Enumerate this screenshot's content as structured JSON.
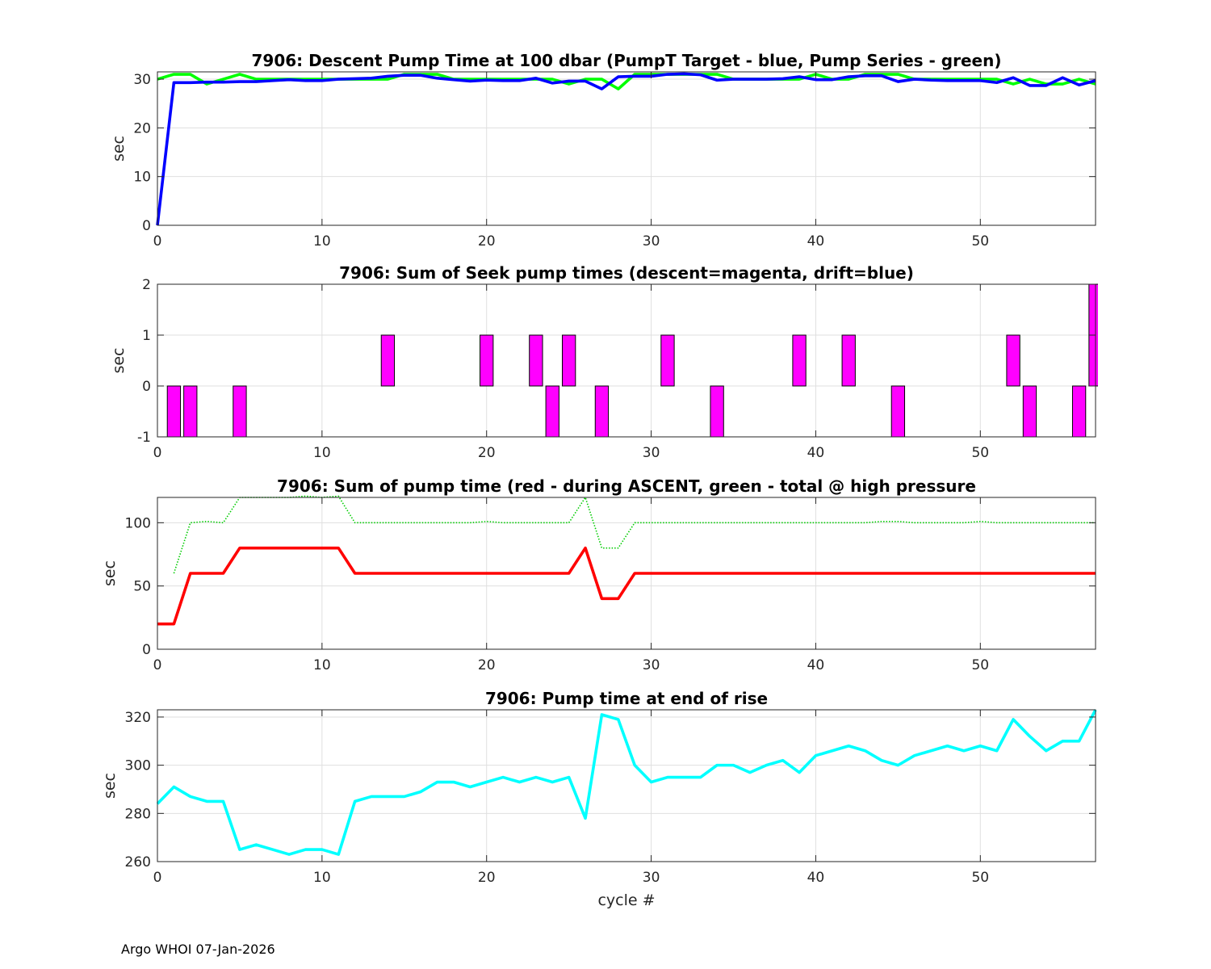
{
  "footer": "Argo WHOI 07-Jan-2026",
  "chart_data": [
    {
      "type": "line",
      "title": "7906: Descent Pump Time at 100 dbar (PumpT Target - blue, Pump Series - green)",
      "xlabel": "",
      "ylabel": "sec",
      "xlim": [
        0,
        57
      ],
      "ylim": [
        0,
        31.5
      ],
      "xticks": [
        0,
        10,
        20,
        30,
        40,
        50
      ],
      "yticks": [
        0,
        10,
        20,
        30
      ],
      "grid": true,
      "series": [
        {
          "name": "Pump Series",
          "color": "#00ff00",
          "style": "solid",
          "x": [
            0,
            1,
            2,
            3,
            4,
            5,
            6,
            7,
            8,
            9,
            10,
            11,
            12,
            13,
            14,
            15,
            16,
            17,
            18,
            19,
            20,
            21,
            22,
            23,
            24,
            25,
            26,
            27,
            28,
            29,
            30,
            31,
            32,
            33,
            34,
            35,
            36,
            37,
            38,
            39,
            40,
            41,
            42,
            43,
            44,
            45,
            46,
            47,
            48,
            49,
            50,
            51,
            52,
            53,
            54,
            55,
            56,
            57
          ],
          "values": [
            30,
            31,
            31,
            29,
            30,
            31,
            30,
            30,
            30,
            30,
            30,
            30,
            30,
            30,
            30,
            31,
            31,
            31,
            30,
            30,
            30,
            30,
            30,
            30,
            30,
            29,
            30,
            30,
            28,
            31,
            31,
            31,
            31,
            31,
            31,
            30,
            30,
            30,
            30,
            30,
            31,
            30,
            30,
            31,
            31,
            31,
            30,
            30,
            30,
            30,
            30,
            30,
            29,
            30,
            29,
            29,
            30,
            29
          ]
        },
        {
          "name": "PumpT Target",
          "color": "#0000ff",
          "style": "solid",
          "x": [
            0,
            1,
            2,
            3,
            4,
            5,
            6,
            7,
            8,
            9,
            10,
            11,
            12,
            13,
            14,
            15,
            16,
            17,
            18,
            19,
            20,
            21,
            22,
            23,
            24,
            25,
            26,
            27,
            28,
            29,
            30,
            31,
            32,
            33,
            34,
            35,
            36,
            37,
            38,
            39,
            40,
            41,
            42,
            43,
            44,
            45,
            46,
            47,
            48,
            49,
            50,
            51,
            52,
            53,
            54,
            55,
            56,
            57
          ],
          "values": [
            0,
            29.3,
            29.3,
            29.4,
            29.4,
            29.5,
            29.5,
            29.7,
            29.9,
            29.7,
            29.7,
            30,
            30.1,
            30.2,
            30.6,
            30.8,
            30.8,
            30.2,
            29.9,
            29.6,
            29.8,
            29.7,
            29.7,
            30.2,
            29.2,
            29.6,
            29.6,
            28,
            30.5,
            30.6,
            30.6,
            31,
            31.1,
            30.9,
            29.8,
            30,
            30,
            30,
            30.1,
            30.5,
            29.9,
            29.9,
            30.5,
            30.7,
            30.7,
            29.5,
            30,
            29.8,
            29.7,
            29.7,
            29.7,
            29.3,
            30.3,
            28.7,
            28.7,
            30.3,
            28.8,
            29.7
          ]
        }
      ]
    },
    {
      "type": "bar",
      "title": "7906: Sum of Seek pump times (descent=magenta, drift=blue)",
      "xlabel": "",
      "ylabel": "sec",
      "xlim": [
        0,
        57
      ],
      "ylim": [
        -1,
        2
      ],
      "xticks": [
        0,
        10,
        20,
        30,
        40,
        50
      ],
      "yticks": [
        -1,
        0,
        1,
        2
      ],
      "grid": true,
      "series": [
        {
          "name": "descent",
          "color": "#ff00ff",
          "x": [
            1,
            2,
            5,
            14,
            20,
            23,
            24,
            25,
            27,
            31,
            34,
            39,
            42,
            45,
            52,
            53,
            56,
            57
          ],
          "values": [
            -1,
            -1,
            -1,
            1,
            1,
            1,
            -1,
            1,
            -1,
            1,
            -1,
            1,
            1,
            -1,
            1,
            -1,
            -1,
            2
          ]
        }
      ]
    },
    {
      "type": "line",
      "title": "7906: Sum of pump time (red - during ASCENT, green - total @ high pressure",
      "xlabel": "",
      "ylabel": "sec",
      "xlim": [
        0,
        57
      ],
      "ylim": [
        0,
        120
      ],
      "xticks": [
        0,
        10,
        20,
        30,
        40,
        50
      ],
      "yticks": [
        0,
        50,
        100
      ],
      "grid": true,
      "series": [
        {
          "name": "total @ high pressure",
          "color": "#00cc00",
          "style": "dotted",
          "x": [
            1,
            2,
            3,
            4,
            5,
            6,
            7,
            8,
            9,
            10,
            11,
            12,
            13,
            14,
            15,
            16,
            17,
            18,
            19,
            20,
            21,
            22,
            23,
            24,
            25,
            26,
            27,
            28,
            29,
            30,
            31,
            32,
            33,
            34,
            35,
            36,
            37,
            38,
            39,
            40,
            41,
            42,
            43,
            44,
            45,
            46,
            47,
            48,
            49,
            50,
            51,
            52,
            53,
            54,
            55,
            56,
            57
          ],
          "values": [
            60,
            100,
            101,
            100,
            120,
            120,
            120,
            120,
            121,
            120,
            121,
            100,
            100,
            100,
            100,
            100,
            100,
            100,
            100,
            101,
            100,
            100,
            100,
            100,
            100,
            120,
            80,
            80,
            100,
            100,
            100,
            100,
            100,
            100,
            100,
            100,
            100,
            100,
            100,
            100,
            100,
            100,
            100,
            101,
            101,
            100,
            100,
            100,
            100,
            101,
            100,
            100,
            100,
            100,
            100,
            100,
            100
          ]
        },
        {
          "name": "during ASCENT",
          "color": "#ff0000",
          "style": "solid",
          "x": [
            0,
            1,
            2,
            3,
            4,
            5,
            6,
            7,
            8,
            9,
            10,
            11,
            12,
            13,
            14,
            15,
            16,
            17,
            18,
            19,
            20,
            21,
            22,
            23,
            24,
            25,
            26,
            27,
            28,
            29,
            30,
            31,
            32,
            33,
            34,
            35,
            36,
            37,
            38,
            39,
            40,
            41,
            42,
            43,
            44,
            45,
            46,
            47,
            48,
            49,
            50,
            51,
            52,
            53,
            54,
            55,
            56,
            57
          ],
          "values": [
            20,
            20,
            60,
            60,
            60,
            80,
            80,
            80,
            80,
            80,
            80,
            80,
            60,
            60,
            60,
            60,
            60,
            60,
            60,
            60,
            60,
            60,
            60,
            60,
            60,
            60,
            80,
            40,
            40,
            60,
            60,
            60,
            60,
            60,
            60,
            60,
            60,
            60,
            60,
            60,
            60,
            60,
            60,
            60,
            60,
            60,
            60,
            60,
            60,
            60,
            60,
            60,
            60,
            60,
            60,
            60,
            60,
            60
          ]
        }
      ]
    },
    {
      "type": "line",
      "title": "7906: Pump time at end of rise",
      "xlabel": "cycle #",
      "ylabel": "sec",
      "xlim": [
        0,
        57
      ],
      "ylim": [
        260,
        323
      ],
      "xticks": [
        0,
        10,
        20,
        30,
        40,
        50
      ],
      "yticks": [
        260,
        280,
        300,
        320
      ],
      "grid": true,
      "series": [
        {
          "name": "end of rise",
          "color": "#00ffff",
          "style": "solid",
          "x": [
            0,
            1,
            2,
            3,
            4,
            5,
            6,
            7,
            8,
            9,
            10,
            11,
            12,
            13,
            14,
            15,
            16,
            17,
            18,
            19,
            20,
            21,
            22,
            23,
            24,
            25,
            26,
            27,
            28,
            29,
            30,
            31,
            32,
            33,
            34,
            35,
            36,
            37,
            38,
            39,
            40,
            41,
            42,
            43,
            44,
            45,
            46,
            47,
            48,
            49,
            50,
            51,
            52,
            53,
            54,
            55,
            56,
            57
          ],
          "values": [
            284,
            291,
            287,
            285,
            285,
            265,
            267,
            265,
            263,
            265,
            265,
            263,
            285,
            287,
            287,
            287,
            289,
            293,
            293,
            291,
            293,
            295,
            293,
            295,
            293,
            295,
            278,
            321,
            319,
            300,
            293,
            295,
            295,
            295,
            300,
            300,
            297,
            300,
            302,
            297,
            304,
            306,
            308,
            306,
            302,
            300,
            304,
            306,
            308,
            306,
            308,
            306,
            319,
            312,
            306,
            310,
            310,
            323
          ]
        }
      ]
    }
  ]
}
